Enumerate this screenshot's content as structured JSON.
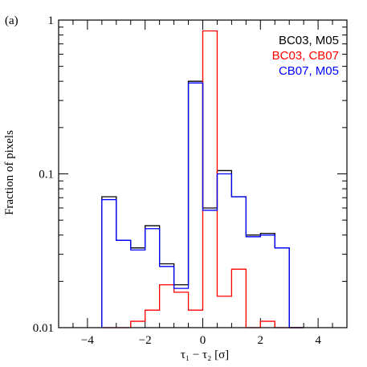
{
  "chart_data": {
    "type": "line",
    "panel_label": "(a)",
    "xlabel": "τ₁ − τ₂ [σ]",
    "ylabel": "Fraction of pixels",
    "yscale": "log",
    "xlim": [
      -5,
      5
    ],
    "ylim": [
      0.01,
      1
    ],
    "x_ticks": [
      -4,
      -2,
      0,
      2,
      4
    ],
    "x_tick_labels": [
      "−4",
      "−2",
      "0",
      "2",
      "4"
    ],
    "y_ticks": [
      0.01,
      0.1,
      1
    ],
    "y_tick_labels": [
      "0.01",
      "0.1",
      "1"
    ],
    "legend_position": "top-right",
    "bin_edges": [
      -3.5,
      -3,
      -2.5,
      -2,
      -1.5,
      -1,
      -0.5,
      0,
      0.5,
      1,
      1.5,
      2,
      2.5,
      3,
      3.5
    ],
    "series": [
      {
        "name": "BC03, M05",
        "color": "#000000",
        "values": [
          0.071,
          0.037,
          0.033,
          0.046,
          0.026,
          0.019,
          0.4,
          0.06,
          0.105,
          0.071,
          0.04,
          0.041,
          0.033,
          0.0001
        ]
      },
      {
        "name": "BC03, CB07",
        "color": "#ff0000",
        "values": [
          0.009,
          0.01,
          0.011,
          0.013,
          0.019,
          0.017,
          0.013,
          0.85,
          0.016,
          0.024,
          0.01,
          0.011,
          0.009,
          0.009
        ]
      },
      {
        "name": "CB07, M05",
        "color": "#0000ff",
        "values": [
          0.068,
          0.037,
          0.032,
          0.044,
          0.025,
          0.018,
          0.39,
          0.058,
          0.1,
          0.071,
          0.039,
          0.04,
          0.033,
          0.0001
        ]
      }
    ]
  }
}
